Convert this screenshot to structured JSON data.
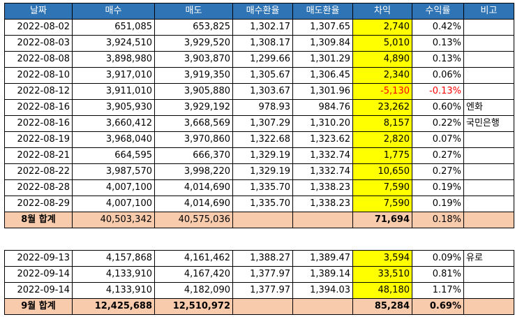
{
  "header": [
    "날짜",
    "매수",
    "매도",
    "매수환율",
    "매도환율",
    "차익",
    "수익률",
    "비고"
  ],
  "august": {
    "rows": [
      {
        "date": "2022-08-02",
        "buy": "651,085",
        "sell": "653,825",
        "buy_rate": "1,302.17",
        "sell_rate": "1,307.65",
        "diff": "2,740",
        "yield": "0.42%",
        "note": ""
      },
      {
        "date": "2022-08-03",
        "buy": "3,924,510",
        "sell": "3,929,520",
        "buy_rate": "1,308.17",
        "sell_rate": "1,309.84",
        "diff": "5,010",
        "yield": "0.13%",
        "note": ""
      },
      {
        "date": "2022-08-08",
        "buy": "3,898,980",
        "sell": "3,903,870",
        "buy_rate": "1,299.66",
        "sell_rate": "1,301.29",
        "diff": "4,890",
        "yield": "0.13%",
        "note": ""
      },
      {
        "date": "2022-08-10",
        "buy": "3,917,010",
        "sell": "3,919,350",
        "buy_rate": "1,305.67",
        "sell_rate": "1,306.45",
        "diff": "2,340",
        "yield": "0.06%",
        "note": ""
      },
      {
        "date": "2022-08-12",
        "buy": "3,911,010",
        "sell": "3,905,880",
        "buy_rate": "1,303.67",
        "sell_rate": "1,301.96",
        "diff": "-5,130",
        "yield": "-0.13%",
        "note": "",
        "negative": true
      },
      {
        "date": "2022-08-16",
        "buy": "3,905,930",
        "sell": "3,929,192",
        "buy_rate": "978.93",
        "sell_rate": "984.76",
        "diff": "23,262",
        "yield": "0.60%",
        "note": "엔화"
      },
      {
        "date": "2022-08-16",
        "buy": "3,660,412",
        "sell": "3,668,569",
        "buy_rate": "1,307.29",
        "sell_rate": "1,310.20",
        "diff": "8,157",
        "yield": "0.22%",
        "note": "국민은행"
      },
      {
        "date": "2022-08-19",
        "buy": "3,968,040",
        "sell": "3,970,860",
        "buy_rate": "1,322.68",
        "sell_rate": "1,323.62",
        "diff": "2,820",
        "yield": "0.07%",
        "note": ""
      },
      {
        "date": "2022-08-21",
        "buy": "664,595",
        "sell": "666,370",
        "buy_rate": "1,329.19",
        "sell_rate": "1,332.74",
        "diff": "1,775",
        "yield": "0.27%",
        "note": ""
      },
      {
        "date": "2022-08-22",
        "buy": "3,987,570",
        "sell": "3,998,220",
        "buy_rate": "1,329.19",
        "sell_rate": "1,332.74",
        "diff": "10,650",
        "yield": "0.27%",
        "note": ""
      },
      {
        "date": "2022-08-28",
        "buy": "4,007,100",
        "sell": "4,014,690",
        "buy_rate": "1,335.70",
        "sell_rate": "1,338.23",
        "diff": "7,590",
        "yield": "0.19%",
        "note": ""
      },
      {
        "date": "2022-08-29",
        "buy": "4,007,100",
        "sell": "4,014,690",
        "buy_rate": "1,335.70",
        "sell_rate": "1,338.23",
        "diff": "7,590",
        "yield": "0.19%",
        "note": ""
      }
    ],
    "total": {
      "label": "8월 합계",
      "buy": "40,503,342",
      "sell": "40,575,036",
      "diff": "71,694",
      "yield": "0.18%"
    }
  },
  "september": {
    "rows": [
      {
        "date": "2022-09-13",
        "buy": "4,157,868",
        "sell": "4,161,462",
        "buy_rate": "1,388.27",
        "sell_rate": "1,389.47",
        "diff": "3,594",
        "yield": "0.09%",
        "note": "유로"
      },
      {
        "date": "2022-09-14",
        "buy": "4,133,910",
        "sell": "4,167,420",
        "buy_rate": "1,377.97",
        "sell_rate": "1,389.14",
        "diff": "33,510",
        "yield": "0.81%",
        "note": ""
      },
      {
        "date": "2022-09-14",
        "buy": "4,133,910",
        "sell": "4,182,090",
        "buy_rate": "1,377.97",
        "sell_rate": "1,394.03",
        "diff": "48,180",
        "yield": "1.17%",
        "note": ""
      }
    ],
    "total": {
      "label": "9월 합계",
      "buy": "12,425,688",
      "sell": "12,510,972",
      "diff": "85,284",
      "yield": "0.69%"
    }
  },
  "colors": {
    "header_bg": "#2f75b5",
    "diff_bg": "#ffff00",
    "total_bg": "#f8cbad",
    "negative": "#ff0000"
  }
}
